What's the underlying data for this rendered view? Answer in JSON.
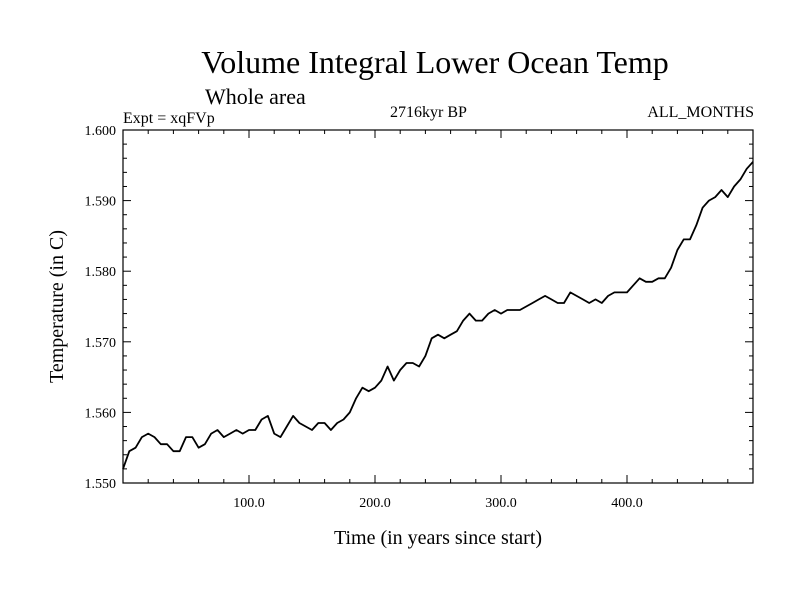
{
  "chart_data": {
    "type": "line",
    "title": "Volume Integral Lower Ocean Temp",
    "subtitle": "Whole area",
    "annotations": {
      "experiment": "Expt = xqFVp",
      "period": "2716kyr BP",
      "months": "ALL_MONTHS"
    },
    "xlabel": "Time (in years since start)",
    "ylabel": "Temperature (in C)",
    "xlim": [
      0,
      500
    ],
    "ylim": [
      1.55,
      1.6
    ],
    "x_ticks": [
      100,
      200,
      300,
      400
    ],
    "x_tick_labels": [
      "100.0",
      "200.0",
      "300.0",
      "400.0"
    ],
    "y_ticks": [
      1.55,
      1.56,
      1.57,
      1.58,
      1.59,
      1.6
    ],
    "y_tick_labels": [
      "1.550",
      "1.560",
      "1.570",
      "1.580",
      "1.590",
      "1.600"
    ],
    "grid": false,
    "series": [
      {
        "name": "Volume Integral Lower Ocean Temp",
        "color": "#000000",
        "x": [
          0,
          5,
          10,
          15,
          20,
          25,
          30,
          35,
          40,
          45,
          50,
          55,
          60,
          65,
          70,
          75,
          80,
          85,
          90,
          95,
          100,
          105,
          110,
          115,
          120,
          125,
          130,
          135,
          140,
          145,
          150,
          155,
          160,
          165,
          170,
          175,
          180,
          185,
          190,
          195,
          200,
          205,
          210,
          215,
          220,
          225,
          230,
          235,
          240,
          245,
          250,
          255,
          260,
          265,
          270,
          275,
          280,
          285,
          290,
          295,
          300,
          305,
          310,
          315,
          320,
          325,
          330,
          335,
          340,
          345,
          350,
          355,
          360,
          365,
          370,
          375,
          380,
          385,
          390,
          395,
          400,
          405,
          410,
          415,
          420,
          425,
          430,
          435,
          440,
          445,
          450,
          455,
          460,
          465,
          470,
          475,
          480,
          485,
          490,
          495,
          500
        ],
        "values": [
          1.552,
          1.5545,
          1.555,
          1.5565,
          1.557,
          1.5565,
          1.5555,
          1.5555,
          1.5545,
          1.5545,
          1.5565,
          1.5565,
          1.555,
          1.5555,
          1.557,
          1.5575,
          1.5565,
          1.557,
          1.5575,
          1.557,
          1.5575,
          1.5575,
          1.559,
          1.5595,
          1.557,
          1.5565,
          1.558,
          1.5595,
          1.5585,
          1.558,
          1.5575,
          1.5585,
          1.5585,
          1.5575,
          1.5585,
          1.559,
          1.56,
          1.562,
          1.5635,
          1.563,
          1.5635,
          1.5645,
          1.5665,
          1.5645,
          1.566,
          1.567,
          1.567,
          1.5665,
          1.568,
          1.5705,
          1.571,
          1.5705,
          1.571,
          1.5715,
          1.573,
          1.574,
          1.573,
          1.573,
          1.574,
          1.5745,
          1.574,
          1.5745,
          1.5745,
          1.5745,
          1.575,
          1.5755,
          1.576,
          1.5765,
          1.576,
          1.5755,
          1.5755,
          1.577,
          1.5765,
          1.576,
          1.5755,
          1.576,
          1.5755,
          1.5765,
          1.577,
          1.577,
          1.577,
          1.578,
          1.579,
          1.5785,
          1.5785,
          1.579,
          1.579,
          1.5805,
          1.583,
          1.5845,
          1.5845,
          1.5865,
          1.589,
          1.59,
          1.5905,
          1.5915,
          1.5905,
          1.592,
          1.593,
          1.5945,
          1.5955
        ]
      }
    ]
  }
}
